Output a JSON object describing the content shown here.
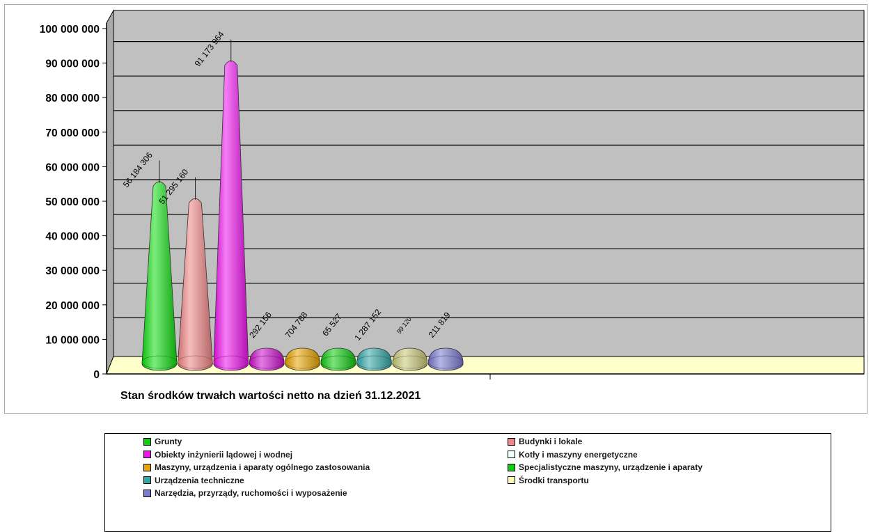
{
  "chart_data": {
    "type": "bar",
    "subtype": "3d-cone",
    "title": "",
    "xlabel": "Stan środków trwałch wartości netto na dzień 31.12.2021",
    "ylabel": "",
    "ylim": [
      0,
      100000000
    ],
    "y_ticks": [
      "0",
      "10 000 000",
      "20 000 000",
      "30 000 000",
      "40 000 000",
      "50 000 000",
      "60 000 000",
      "70 000 000",
      "80 000 000",
      "90 000 000",
      "100 000 000"
    ],
    "grid": true,
    "legend_position": "bottom",
    "series": [
      {
        "name": "Grunty",
        "value": 56184306,
        "label": "56 184 306",
        "color": "#11dd11"
      },
      {
        "name": "Budynki i lokale",
        "value": 51295160,
        "label": "51 295 160",
        "color": "#f08585"
      },
      {
        "name": "Obiekty inżynierii lądowej i wodnej",
        "value": 91173964,
        "label": "91 173 964",
        "color": "#ee11ee"
      },
      {
        "name": "Kotły i maszyny energetyczne",
        "value": 292156,
        "label": "292 156",
        "color": "#cc11cc"
      },
      {
        "name": "Maszyny, urządzenia i aparaty ogólnego zastosowania",
        "value": 704788,
        "label": "704 788",
        "color": "#e8a400"
      },
      {
        "name": "Specjalistyczne maszyny, urządzenie i aparaty",
        "value": 65527,
        "label": "65 527",
        "color": "#11cc11"
      },
      {
        "name": "Urządzenia techniczne",
        "value": 1287152,
        "label": "1 287 152",
        "color": "#33a7a7"
      },
      {
        "name": "Środki transportu",
        "value": 99120,
        "label": "99 120",
        "color": "#c8c878"
      },
      {
        "name": "Narzędzia, przyrządy, ruchomości i wyposażenie",
        "value": 211819,
        "label": "211 819",
        "color": "#7a7ad0"
      }
    ]
  },
  "legend": {
    "swatch_colors": [
      "#11cc11",
      "#f08585",
      "#ee11ee",
      "#eeffff",
      "#e8a400",
      "#11cc11",
      "#33a7a7",
      "#ffffbb",
      "#7a7ad0"
    ]
  },
  "colors": {
    "plot_bg": "#c0c0c0",
    "floor": "#ffffcc",
    "gridline": "#000000"
  }
}
